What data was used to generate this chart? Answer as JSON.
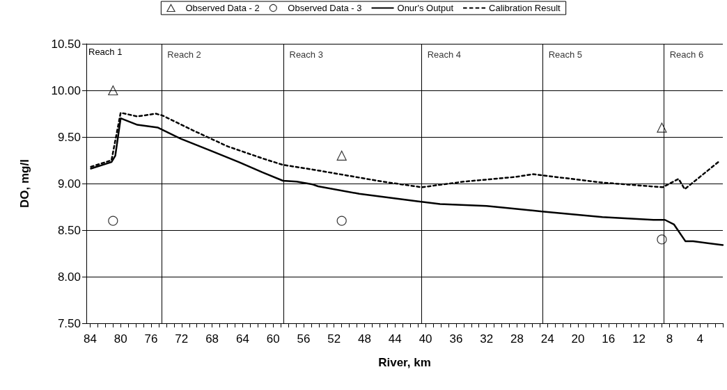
{
  "chart_data": {
    "type": "line",
    "xlabel": "River, km",
    "ylabel": "DO, mg/l",
    "xlim": [
      84.5,
      1
    ],
    "ylim": [
      7.5,
      10.5
    ],
    "xticks": [
      84,
      {
        "value": 83,
        "label": null
      },
      {
        "value": 82,
        "label": null
      },
      {
        "value": 81,
        "label": null
      },
      80,
      {
        "value": 79,
        "label": null
      },
      {
        "value": 78,
        "label": null
      },
      {
        "value": 77,
        "label": null
      },
      76,
      {
        "value": 75,
        "label": null
      },
      {
        "value": 74,
        "label": null
      },
      {
        "value": 73,
        "label": null
      },
      72,
      {
        "value": 71,
        "label": null
      },
      {
        "value": 70,
        "label": null
      },
      {
        "value": 69,
        "label": null
      },
      68,
      {
        "value": 67,
        "label": null
      },
      {
        "value": 66,
        "label": null
      },
      {
        "value": 65,
        "label": null
      },
      64,
      {
        "value": 63,
        "label": null
      },
      {
        "value": 62,
        "label": null
      },
      {
        "value": 61,
        "label": null
      },
      60,
      {
        "value": 59,
        "label": null
      },
      {
        "value": 58,
        "label": null
      },
      {
        "value": 57,
        "label": null
      },
      56,
      {
        "value": 55,
        "label": null
      },
      {
        "value": 54,
        "label": null
      },
      {
        "value": 53,
        "label": null
      },
      52,
      {
        "value": 51,
        "label": null
      },
      {
        "value": 50,
        "label": null
      },
      {
        "value": 49,
        "label": null
      },
      48,
      {
        "value": 47,
        "label": null
      },
      {
        "value": 46,
        "label": null
      },
      {
        "value": 45,
        "label": null
      },
      44,
      {
        "value": 43,
        "label": null
      },
      {
        "value": 42,
        "label": null
      },
      {
        "value": 41,
        "label": null
      },
      40,
      {
        "value": 39,
        "label": null
      },
      {
        "value": 38,
        "label": null
      },
      {
        "value": 37,
        "label": null
      },
      36,
      {
        "value": 35,
        "label": null
      },
      {
        "value": 34,
        "label": null
      },
      {
        "value": 33,
        "label": null
      },
      32,
      {
        "value": 31,
        "label": null
      },
      {
        "value": 30,
        "label": null
      },
      {
        "value": 29,
        "label": null
      },
      28,
      {
        "value": 27,
        "label": null
      },
      {
        "value": 26,
        "label": null
      },
      {
        "value": 25,
        "label": null
      },
      24,
      {
        "value": 23,
        "label": null
      },
      {
        "value": 22,
        "label": null
      },
      {
        "value": 21,
        "label": null
      },
      20,
      {
        "value": 19,
        "label": null
      },
      {
        "value": 18,
        "label": null
      },
      {
        "value": 17,
        "label": null
      },
      16,
      {
        "value": 15,
        "label": null
      },
      {
        "value": 14,
        "label": null
      },
      {
        "value": 13,
        "label": null
      },
      12,
      {
        "value": 11,
        "label": null
      },
      {
        "value": 10,
        "label": null
      },
      {
        "value": 9,
        "label": null
      },
      8,
      {
        "value": 7,
        "label": null
      },
      {
        "value": 6,
        "label": null
      },
      {
        "value": 5,
        "label": null
      },
      4,
      {
        "value": 3,
        "label": null
      },
      {
        "value": 2,
        "label": null
      },
      {
        "value": 1,
        "label": null
      }
    ],
    "yticks": [
      {
        "value": 7.5,
        "label": "7.50"
      },
      {
        "value": 8,
        "label": "8.00"
      },
      {
        "value": 8.5,
        "label": "8.50"
      },
      {
        "value": 9,
        "label": "9.00"
      },
      {
        "value": 9.5,
        "label": "9.50"
      },
      {
        "value": 10,
        "label": "10.00"
      },
      {
        "value": 10.5,
        "label": "10.50"
      }
    ],
    "grid": "y",
    "legend": "top",
    "annotations": [
      "Reach 1"
    ],
    "ref_lines": [
      {
        "axis": "x",
        "value": 74.6,
        "label": "Reach 2"
      },
      {
        "axis": "x",
        "value": 58.6,
        "label": "Reach 3"
      },
      {
        "axis": "x",
        "value": 40.5,
        "label": "Reach 4"
      },
      {
        "axis": "x",
        "value": 24.6,
        "label": "Reach 5"
      },
      {
        "axis": "x",
        "value": 8.7,
        "label": "Reach 6"
      }
    ],
    "series": [
      {
        "name": "Observed Data - 2",
        "type": "scatter",
        "marker": "triangle",
        "color": "#000000",
        "x": [
          81.0,
          51.0,
          9.0
        ],
        "values": [
          10.0,
          9.3,
          9.6
        ]
      },
      {
        "name": "Observed Data - 3",
        "type": "scatter",
        "marker": "circle",
        "color": "#000000",
        "x": [
          81.0,
          51.0,
          9.0
        ],
        "values": [
          8.6,
          8.6,
          8.4
        ]
      },
      {
        "name": "Onur's Output",
        "line_style": "solid",
        "color": "#000000",
        "x": [
          83.9,
          81.2,
          80.7,
          80.0,
          77.8,
          75.1,
          72.1,
          68.1,
          64.5,
          61.4,
          58.7,
          56.9,
          54.8,
          54.1,
          48.7,
          41.1,
          38.1,
          32.0,
          28.3,
          24.7,
          16.8,
          10.1,
          8.6,
          7.4,
          5.9,
          4.9,
          1.0
        ],
        "values": [
          9.16,
          9.23,
          9.3,
          9.7,
          9.63,
          9.6,
          9.48,
          9.35,
          9.23,
          9.12,
          9.03,
          9.02,
          8.99,
          8.97,
          8.89,
          8.81,
          8.78,
          8.76,
          8.73,
          8.7,
          8.64,
          8.61,
          8.61,
          8.56,
          8.38,
          8.38,
          8.34
        ]
      },
      {
        "name": "Calibration Result",
        "line_style": "dashed",
        "color": "#000000",
        "x": [
          83.9,
          81.2,
          80.0,
          77.8,
          75.4,
          74.5,
          70.5,
          66.0,
          61.4,
          58.7,
          54.8,
          45.6,
          40.5,
          35.0,
          28.3,
          25.9,
          16.8,
          8.9,
          6.8,
          6.0,
          1.6
        ],
        "values": [
          9.18,
          9.25,
          9.76,
          9.72,
          9.75,
          9.73,
          9.57,
          9.4,
          9.27,
          9.2,
          9.15,
          9.02,
          8.96,
          9.02,
          9.07,
          9.1,
          9.01,
          8.96,
          9.05,
          8.94,
          9.23
        ]
      }
    ]
  }
}
